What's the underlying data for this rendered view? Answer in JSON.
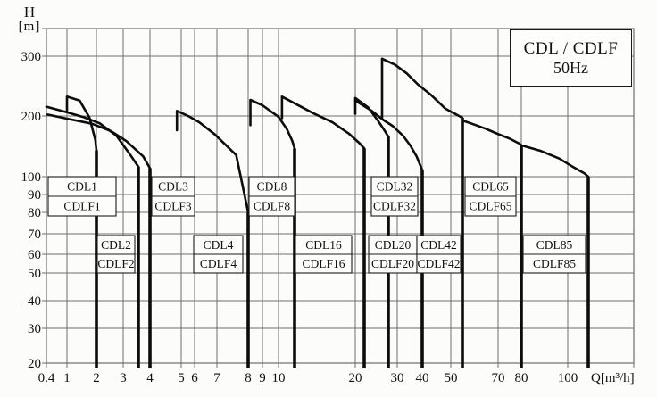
{
  "header": {
    "title_line1": "CDL / CDLF",
    "title_line2": "50Hz"
  },
  "axes": {
    "y_label_line1": "H",
    "y_label_line2": "[m]",
    "x_label": "Q[m³/h]",
    "x_tick_labels": [
      "0.4",
      "1",
      "2",
      "3",
      "4",
      "5",
      "6",
      "7",
      "8",
      "9",
      "10",
      "20",
      "30",
      "40",
      "50",
      "70",
      "80",
      "100"
    ],
    "y_tick_labels": [
      "20",
      "30",
      "40",
      "50",
      "60",
      "70",
      "80",
      "90",
      "100",
      "200",
      "300"
    ]
  },
  "colors": {
    "grid": "#6e6e6e",
    "curve": "#0d0d0d",
    "box_border": "#1c1c1c",
    "box_fill": "#fdfdfc",
    "text": "#111111"
  },
  "chart_data": {
    "type": "line",
    "title": "CDL / CDLF 50Hz",
    "xlabel": "Q [m3/h]",
    "ylabel": "H [m]",
    "x_scale": "log",
    "y_scale": "log",
    "x_range": [
      0.4,
      120
    ],
    "y_range": [
      20,
      400
    ],
    "x_ticks": [
      0.4,
      1,
      2,
      3,
      4,
      5,
      6,
      7,
      8,
      9,
      10,
      20,
      30,
      40,
      50,
      70,
      80,
      100
    ],
    "y_ticks": [
      20,
      30,
      40,
      50,
      60,
      70,
      80,
      90,
      100,
      200,
      300
    ],
    "grid": true,
    "legend_position": "none",
    "series": [
      {
        "label_top": "CDL1",
        "label_bottom": "CDLF1",
        "max_flow_m3h": 2,
        "end_head_m": 135,
        "points": [
          [
            1,
            207
          ],
          [
            1,
            228
          ],
          [
            1.35,
            222
          ],
          [
            1.7,
            196
          ],
          [
            1.95,
            152
          ],
          [
            2,
            135
          ]
        ]
      },
      {
        "label_top": "CDL2",
        "label_bottom": "CDLF2",
        "max_flow_m3h": 3.5,
        "end_head_m": 112,
        "points": [
          [
            0.4,
            213
          ],
          [
            0.9,
            206
          ],
          [
            1.5,
            197
          ],
          [
            2.1,
            184
          ],
          [
            2.7,
            160
          ],
          [
            3.2,
            130
          ],
          [
            3.5,
            112
          ]
        ]
      },
      {
        "label_top": "CDL3",
        "label_bottom": "CDLF3",
        "max_flow_m3h": 4,
        "end_head_m": 110,
        "points": [
          [
            0.42,
            202
          ],
          [
            1,
            194
          ],
          [
            1.8,
            183
          ],
          [
            2.5,
            168
          ],
          [
            3.1,
            150
          ],
          [
            3.7,
            126
          ],
          [
            4,
            110
          ]
        ]
      },
      {
        "label_top": "CDL4",
        "label_bottom": "CDLF4",
        "max_flow_m3h": 8,
        "end_head_m": 80,
        "points": [
          [
            4.85,
            170
          ],
          [
            4.85,
            207
          ],
          [
            5.5,
            200
          ],
          [
            6.2,
            186
          ],
          [
            6.9,
            162
          ],
          [
            7.6,
            128
          ],
          [
            8,
            80
          ]
        ]
      },
      {
        "label_top": "CDL8",
        "label_bottom": "CDLF8",
        "max_flow_m3h": 12,
        "end_head_m": 138,
        "points": [
          [
            8.15,
            180
          ],
          [
            8.15,
            223
          ],
          [
            9,
            215
          ],
          [
            10,
            198
          ],
          [
            11,
            172
          ],
          [
            11.7,
            150
          ],
          [
            12,
            138
          ]
        ]
      },
      {
        "label_top": "CDL16",
        "label_bottom": "CDLF16",
        "max_flow_m3h": 21,
        "end_head_m": 138,
        "points": [
          [
            10.4,
            195
          ],
          [
            10.4,
            228
          ],
          [
            12,
            218
          ],
          [
            14,
            204
          ],
          [
            16.5,
            186
          ],
          [
            19,
            163
          ],
          [
            20.5,
            146
          ],
          [
            21,
            138
          ]
        ]
      },
      {
        "label_top": "CDL20",
        "label_bottom": "CDLF20",
        "max_flow_m3h": 28,
        "end_head_m": 158,
        "points": [
          [
            20,
            203
          ],
          [
            20,
            226
          ],
          [
            22,
            212
          ],
          [
            24.5,
            192
          ],
          [
            26.5,
            172
          ],
          [
            28,
            158
          ]
        ]
      },
      {
        "label_top": "CDL32",
        "label_bottom": "CDLF32",
        "max_flow_m3h": 40,
        "end_head_m": 108,
        "points": [
          [
            20,
            222
          ],
          [
            23,
            207
          ],
          [
            26,
            193
          ],
          [
            29,
            178
          ],
          [
            32,
            160
          ],
          [
            35,
            142
          ],
          [
            37.5,
            126
          ],
          [
            39.5,
            111
          ],
          [
            40,
            108
          ]
        ]
      },
      {
        "label_top": "CDL42",
        "label_bottom": "CDLF42",
        "max_flow_m3h": 52,
        "end_head_m": 196,
        "points": [
          [
            26,
            195
          ],
          [
            26,
            295
          ],
          [
            29.5,
            283
          ],
          [
            33.5,
            267
          ],
          [
            38,
            248
          ],
          [
            43,
            230
          ],
          [
            48,
            210
          ],
          [
            52,
            196
          ]
        ]
      },
      {
        "label_top": "CDL65",
        "label_bottom": "CDLF65",
        "max_flow_m3h": 80,
        "end_head_m": 143,
        "points": [
          [
            52,
            190
          ],
          [
            57,
            182
          ],
          [
            63,
            173
          ],
          [
            69,
            164
          ],
          [
            75,
            154
          ],
          [
            79,
            146
          ],
          [
            80,
            143
          ]
        ]
      },
      {
        "label_top": "CDL85",
        "label_bottom": "CDLF85",
        "max_flow_m3h": 110,
        "end_head_m": 100,
        "points": [
          [
            80,
            143
          ],
          [
            88,
            134
          ],
          [
            96,
            123
          ],
          [
            103,
            111
          ],
          [
            108,
            104
          ],
          [
            110,
            100
          ]
        ]
      }
    ]
  }
}
